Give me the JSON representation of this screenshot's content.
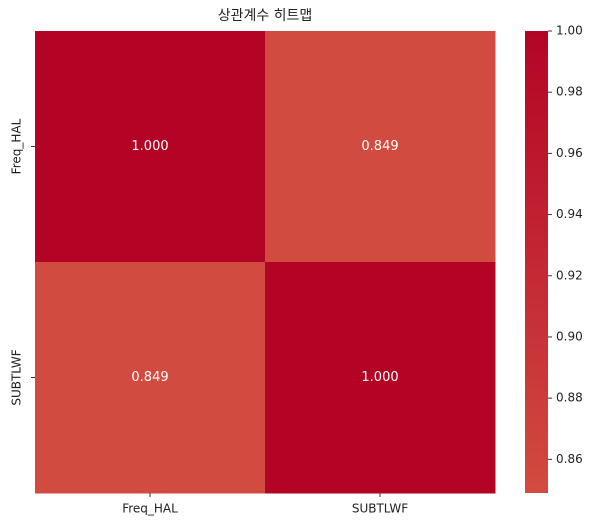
{
  "chart_data": {
    "type": "heatmap",
    "title": "상관계수 히트맵",
    "x_categories": [
      "Freq_HAL",
      "SUBTLWF"
    ],
    "y_categories": [
      "Freq_HAL",
      "SUBTLWF"
    ],
    "values": [
      [
        1.0,
        0.849
      ],
      [
        0.849,
        1.0
      ]
    ],
    "value_labels": [
      [
        "1.000",
        "0.849"
      ],
      [
        "0.849",
        "1.000"
      ]
    ],
    "clim": [
      0.849,
      1.0
    ],
    "cmap_colors": [
      "#d24b40",
      "#b40426"
    ],
    "cticks": [
      0.86,
      0.88,
      {
        "value": 0.9,
        "label": "0.90"
      },
      0.92,
      0.94,
      0.96,
      0.98,
      {
        "value": 1.0,
        "label": "1.00"
      }
    ]
  }
}
